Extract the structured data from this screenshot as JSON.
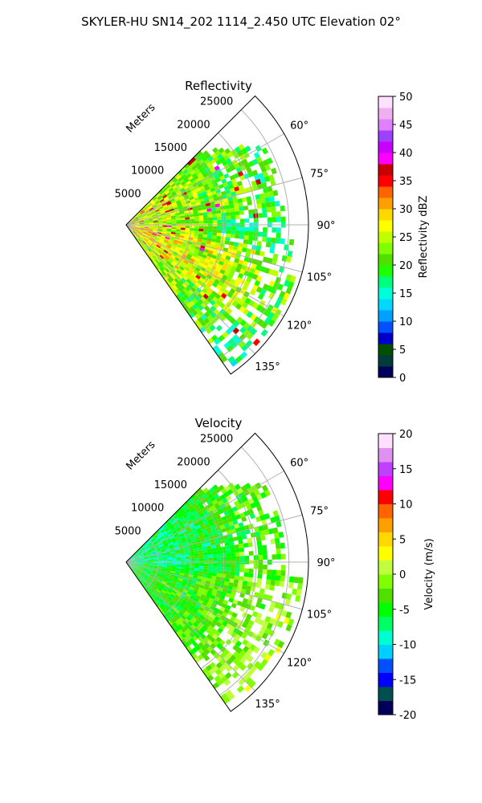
{
  "figure": {
    "title": "SKYLER-HU  SN14_202  1114_2.450 UTC Elevation 02°"
  },
  "colors": {
    "grid": "#b0b0b0",
    "axis": "#000000",
    "reflectivity_scale": [
      "#00005a",
      "#003c3c",
      "#005000",
      "#0000c8",
      "#0050ff",
      "#00a0ff",
      "#00d8ff",
      "#00ffd8",
      "#00ff80",
      "#20ff00",
      "#50e000",
      "#80ff00",
      "#c0ff00",
      "#ffff00",
      "#ffd800",
      "#ffa000",
      "#ff6400",
      "#ff0000",
      "#c80000",
      "#ff00ff",
      "#c800ff",
      "#a040ff",
      "#e080ff",
      "#f0b0f0",
      "#ffe0ff"
    ],
    "velocity_scale": [
      "#00005a",
      "#005050",
      "#0000ff",
      "#0050ff",
      "#00d0ff",
      "#00ffd0",
      "#00ff60",
      "#00ff00",
      "#50e000",
      "#80ff00",
      "#c0ff40",
      "#ffff00",
      "#ffd800",
      "#ffa000",
      "#ff6400",
      "#ff0000",
      "#ff00ff",
      "#c040ff",
      "#e090f0",
      "#ffe0ff"
    ]
  },
  "chart_data": [
    {
      "type": "heatmap",
      "projection": "polar-sector",
      "title": "Reflectivity",
      "range_label": "Meters",
      "range_ticks": [
        "5000",
        "10000",
        "15000",
        "20000",
        "25000"
      ],
      "range_values": [
        5000,
        10000,
        15000,
        20000,
        25000
      ],
      "rmax": 28000,
      "azimuth_range": [
        45,
        145
      ],
      "azimuth_ticks": [
        "60°",
        "75°",
        "90°",
        "105°",
        "120°",
        "135°"
      ],
      "azimuth_values": [
        60,
        75,
        90,
        105,
        120,
        135
      ],
      "colorbar": {
        "label": "Reflectivity dBZ",
        "range": [
          0,
          50
        ],
        "ticks": [
          "0",
          "5",
          "10",
          "15",
          "20",
          "25",
          "30",
          "35",
          "40",
          "45",
          "50"
        ]
      },
      "grid": true
    },
    {
      "type": "heatmap",
      "projection": "polar-sector",
      "title": "Velocity",
      "range_label": "Meters",
      "range_ticks": [
        "5000",
        "10000",
        "15000",
        "20000",
        "25000"
      ],
      "range_values": [
        5000,
        10000,
        15000,
        20000,
        25000
      ],
      "rmax": 28000,
      "azimuth_range": [
        45,
        145
      ],
      "azimuth_ticks": [
        "60°",
        "75°",
        "90°",
        "105°",
        "120°",
        "135°"
      ],
      "azimuth_values": [
        60,
        75,
        90,
        105,
        120,
        135
      ],
      "colorbar": {
        "label": "Velocity (m/s)",
        "range": [
          -20,
          20
        ],
        "ticks": [
          "-20",
          "-15",
          "-10",
          "-5",
          "0",
          "5",
          "10",
          "15",
          "20"
        ]
      },
      "grid": true
    }
  ]
}
